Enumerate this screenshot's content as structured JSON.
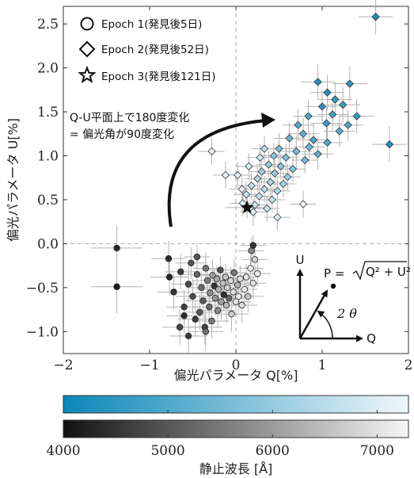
{
  "chart_data": {
    "type": "scatter",
    "xlabel": "偏光パラメータ Q[%]",
    "ylabel": "偏光パラメータ U[%]",
    "xlim": [
      -2,
      2
    ],
    "ylim": [
      -1.25,
      2.7
    ],
    "xticks": [
      "−2",
      "−1",
      "0",
      "1",
      "2"
    ],
    "yticks": [
      "−1.0",
      "−0.5",
      "0.0",
      "0.5",
      "1.0",
      "1.5",
      "2.0",
      "2.5"
    ],
    "grid": false,
    "legend": {
      "placement": "top-left",
      "entries": [
        {
          "marker": "circle",
          "label": "Epoch 1(発見後5日)"
        },
        {
          "marker": "diamond",
          "label": "Epoch 2(発見後52日)"
        },
        {
          "marker": "star",
          "label": "Epoch 3(発見後121日)"
        }
      ]
    },
    "annotation": {
      "lines": [
        "Q-U平面上で180度変化",
        "= 偏光角が90度変化"
      ]
    },
    "inset": {
      "axis_u": "U",
      "axis_q": "Q",
      "formula_lhs": "P =",
      "formula_rhs": "Q² + U²",
      "angle": "2 θ"
    },
    "series": [
      {
        "name": "Epoch 1(発見後5日)",
        "marker": "circle",
        "color_scale": "gray",
        "points": [
          [
            -1.38,
            -0.05,
            0.3,
            0.25,
            4300
          ],
          [
            -1.38,
            -0.49,
            0.3,
            0.3,
            4200
          ],
          [
            -0.78,
            -0.17,
            0.2,
            0.2,
            4400
          ],
          [
            -0.77,
            -0.38,
            0.22,
            0.2,
            4300
          ],
          [
            -0.72,
            -0.55,
            0.2,
            0.2,
            4500
          ],
          [
            -0.64,
            -0.32,
            0.18,
            0.2,
            4600
          ],
          [
            -0.6,
            -0.72,
            0.2,
            0.2,
            4700
          ],
          [
            -0.55,
            -0.46,
            0.2,
            0.2,
            4800
          ],
          [
            -0.52,
            -0.22,
            0.18,
            0.18,
            5000
          ],
          [
            -0.5,
            -0.6,
            0.2,
            0.2,
            4900
          ],
          [
            -0.47,
            -0.86,
            0.2,
            0.2,
            4600
          ],
          [
            -0.45,
            -0.35,
            0.18,
            0.18,
            5200
          ],
          [
            -0.42,
            -0.78,
            0.2,
            0.2,
            5000
          ],
          [
            -0.4,
            -0.5,
            0.18,
            0.2,
            5300
          ],
          [
            -0.38,
            -0.65,
            0.2,
            0.2,
            5100
          ],
          [
            -0.36,
            -0.95,
            0.2,
            0.2,
            4700
          ],
          [
            -0.35,
            -0.28,
            0.15,
            0.18,
            5400
          ],
          [
            -0.33,
            -0.42,
            0.18,
            0.18,
            5600
          ],
          [
            -0.31,
            -0.72,
            0.2,
            0.2,
            5300
          ],
          [
            -0.3,
            -0.56,
            0.18,
            0.18,
            5800
          ],
          [
            -0.28,
            -0.88,
            0.2,
            0.2,
            5500
          ],
          [
            -0.27,
            -0.36,
            0.15,
            0.18,
            6000
          ],
          [
            -0.25,
            -0.48,
            0.18,
            0.18,
            4500
          ],
          [
            -0.24,
            -0.62,
            0.18,
            0.2,
            5900
          ],
          [
            -0.22,
            -0.4,
            0.15,
            0.15,
            6200
          ],
          [
            -0.21,
            -0.76,
            0.2,
            0.2,
            5700
          ],
          [
            -0.2,
            -0.52,
            0.18,
            0.18,
            6300
          ],
          [
            -0.18,
            -0.3,
            0.15,
            0.15,
            4900
          ],
          [
            -0.17,
            -0.66,
            0.18,
            0.2,
            6100
          ],
          [
            -0.15,
            -0.45,
            0.15,
            0.18,
            6500
          ],
          [
            -0.14,
            -0.58,
            0.18,
            0.18,
            4400
          ],
          [
            -0.12,
            -0.38,
            0.15,
            0.15,
            6600
          ],
          [
            -0.11,
            -0.7,
            0.18,
            0.2,
            6400
          ],
          [
            -0.1,
            -0.5,
            0.15,
            0.18,
            6800
          ],
          [
            -0.08,
            -0.62,
            0.18,
            0.18,
            5200
          ],
          [
            -0.06,
            -0.42,
            0.15,
            0.15,
            6900
          ],
          [
            -0.05,
            -0.8,
            0.2,
            0.2,
            6700
          ],
          [
            -0.03,
            -0.55,
            0.15,
            0.18,
            7000
          ],
          [
            -0.02,
            -0.33,
            0.15,
            0.15,
            5500
          ],
          [
            0.0,
            -0.66,
            0.18,
            0.18,
            7100
          ],
          [
            0.02,
            -0.47,
            0.15,
            0.15,
            6300
          ],
          [
            0.03,
            -0.6,
            0.15,
            0.18,
            7200
          ],
          [
            0.05,
            -0.4,
            0.15,
            0.15,
            7000
          ],
          [
            0.07,
            -0.7,
            0.18,
            0.2,
            6900
          ],
          [
            0.1,
            -0.52,
            0.15,
            0.18,
            7200
          ],
          [
            0.12,
            -0.38,
            0.15,
            0.15,
            7100
          ],
          [
            0.14,
            -0.6,
            0.18,
            0.18,
            6600
          ],
          [
            0.17,
            -0.28,
            0.15,
            0.15,
            7200
          ],
          [
            0.2,
            -0.45,
            0.15,
            0.18,
            7000
          ],
          [
            0.22,
            -0.18,
            0.15,
            0.15,
            6800
          ],
          [
            0.25,
            -0.34,
            0.15,
            0.15,
            7150
          ],
          [
            -0.65,
            -0.95,
            0.2,
            0.2,
            4800
          ],
          [
            -0.55,
            -1.05,
            0.22,
            0.2,
            4600
          ],
          [
            -0.45,
            -0.15,
            0.15,
            0.15,
            5000
          ],
          [
            -0.6,
            -0.82,
            0.2,
            0.2,
            4400
          ],
          [
            -0.35,
            -1.0,
            0.2,
            0.22,
            5400
          ],
          [
            0.18,
            -0.08,
            0.15,
            0.15,
            5700
          ],
          [
            0.2,
            -0.02,
            0.15,
            0.12,
            4500
          ]
        ]
      },
      {
        "name": "Epoch 2(発見後52日)",
        "marker": "diamond",
        "color_scale": "cyan",
        "points": [
          [
            1.62,
            2.58,
            0.2,
            0.2,
            4200
          ],
          [
            0.95,
            1.84,
            0.2,
            0.2,
            4400
          ],
          [
            1.32,
            1.82,
            0.2,
            0.2,
            4500
          ],
          [
            1.06,
            1.72,
            0.2,
            0.2,
            4300
          ],
          [
            1.15,
            1.64,
            0.2,
            0.2,
            4600
          ],
          [
            1.24,
            1.58,
            0.2,
            0.2,
            4700
          ],
          [
            1.0,
            1.56,
            0.18,
            0.18,
            4500
          ],
          [
            1.12,
            1.47,
            0.18,
            0.18,
            4800
          ],
          [
            1.4,
            1.45,
            0.2,
            0.2,
            4600
          ],
          [
            0.84,
            1.45,
            0.18,
            0.18,
            4900
          ],
          [
            1.3,
            1.35,
            0.18,
            0.18,
            5000
          ],
          [
            1.05,
            1.37,
            0.18,
            0.18,
            4700
          ],
          [
            0.72,
            1.35,
            0.18,
            0.18,
            5000
          ],
          [
            1.2,
            1.28,
            0.18,
            0.18,
            5100
          ],
          [
            0.78,
            1.25,
            0.18,
            0.18,
            5200
          ],
          [
            0.9,
            1.18,
            0.18,
            0.18,
            4900
          ],
          [
            0.62,
            1.2,
            0.18,
            0.18,
            5300
          ],
          [
            1.06,
            1.15,
            0.18,
            0.18,
            5000
          ],
          [
            0.85,
            1.1,
            0.18,
            0.18,
            5400
          ],
          [
            1.78,
            1.13,
            0.2,
            0.2,
            4400
          ],
          [
            0.5,
            1.08,
            0.18,
            0.18,
            5600
          ],
          [
            0.7,
            1.05,
            0.18,
            0.18,
            5500
          ],
          [
            0.95,
            1.02,
            0.18,
            0.18,
            5200
          ],
          [
            0.44,
            1.0,
            0.15,
            0.15,
            5800
          ],
          [
            0.58,
            0.98,
            0.15,
            0.15,
            5700
          ],
          [
            0.8,
            0.95,
            0.15,
            0.15,
            5600
          ],
          [
            0.38,
            0.9,
            0.15,
            0.15,
            6000
          ],
          [
            0.52,
            0.88,
            0.15,
            0.15,
            5900
          ],
          [
            0.66,
            0.85,
            0.15,
            0.15,
            5800
          ],
          [
            0.3,
            0.82,
            0.15,
            0.15,
            6200
          ],
          [
            0.45,
            0.8,
            0.15,
            0.15,
            6100
          ],
          [
            0.6,
            0.76,
            0.15,
            0.15,
            6000
          ],
          [
            0.25,
            0.74,
            0.15,
            0.15,
            6400
          ],
          [
            0.4,
            0.7,
            0.15,
            0.15,
            6300
          ],
          [
            0.55,
            0.68,
            0.15,
            0.15,
            6200
          ],
          [
            0.18,
            0.66,
            0.15,
            0.15,
            6600
          ],
          [
            0.33,
            0.62,
            0.15,
            0.15,
            6500
          ],
          [
            0.48,
            0.6,
            0.15,
            0.15,
            6400
          ],
          [
            0.12,
            0.56,
            0.15,
            0.15,
            6800
          ],
          [
            0.27,
            0.54,
            0.15,
            0.15,
            6700
          ],
          [
            0.42,
            0.5,
            0.15,
            0.15,
            6600
          ],
          [
            0.08,
            0.46,
            0.15,
            0.15,
            7000
          ],
          [
            0.22,
            0.44,
            0.15,
            0.15,
            6900
          ],
          [
            0.36,
            0.4,
            0.15,
            0.15,
            6800
          ],
          [
            0.02,
            0.78,
            0.15,
            0.15,
            7100
          ],
          [
            0.15,
            0.88,
            0.15,
            0.15,
            7000
          ],
          [
            0.28,
            0.98,
            0.15,
            0.15,
            6800
          ],
          [
            0.07,
            0.62,
            0.15,
            0.15,
            7200
          ],
          [
            -0.12,
            0.78,
            0.15,
            0.15,
            7200
          ],
          [
            -0.28,
            1.05,
            0.15,
            0.15,
            7200
          ],
          [
            0.78,
            0.45,
            0.15,
            0.15,
            7200
          ],
          [
            0.48,
            0.3,
            0.15,
            0.15,
            7000
          ],
          [
            0.2,
            0.36,
            0.15,
            0.15,
            7100
          ],
          [
            0.33,
            1.08,
            0.15,
            0.15,
            6500
          ]
        ]
      },
      {
        "name": "Epoch 3(発見後121日)",
        "marker": "star",
        "color_scale": "black",
        "points": [
          [
            0.13,
            0.41,
            0.25,
            0.12,
            4000
          ]
        ]
      }
    ]
  },
  "colorbars": {
    "cyan": {
      "min": 4000,
      "max": 7300,
      "start": "#0a86b8",
      "end": "#f0f7fa"
    },
    "gray": {
      "min": 4000,
      "max": 7300,
      "start": "#111111",
      "end": "#f6f6f6"
    },
    "ticks": [
      "4000",
      "5000",
      "6000",
      "7000"
    ],
    "label": "静止波長 [Å]"
  }
}
